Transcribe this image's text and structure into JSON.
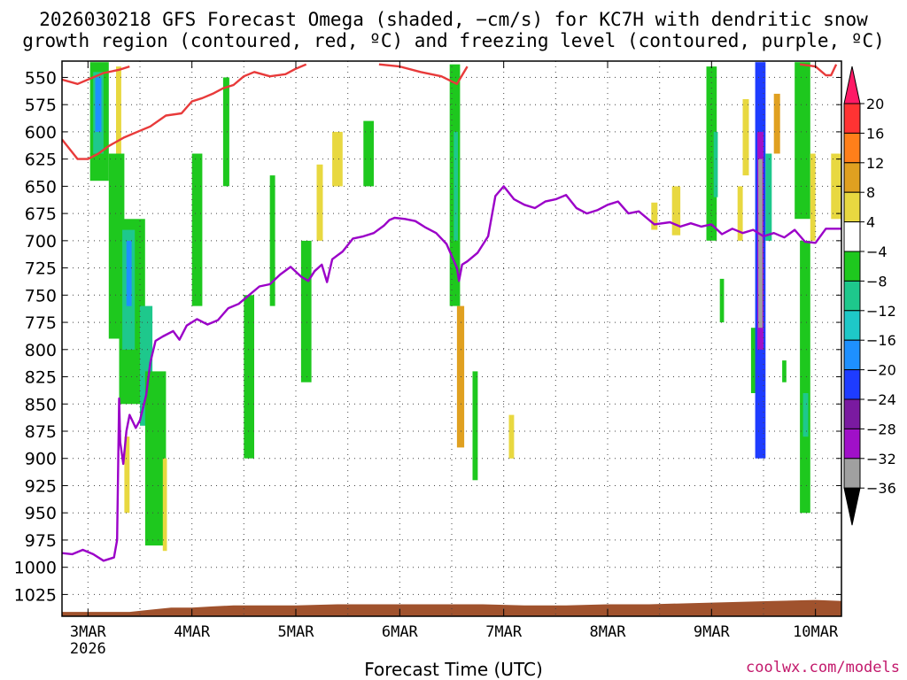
{
  "title_line1": "2026030218 GFS Forecast Omega (shaded, −cm/s) for KC7H with dendritic snow",
  "title_line2": "growth region (contoured, red, ºC) and freezing level (contoured, purple, ºC)",
  "x_axis_label": "Forecast Time (UTC)",
  "credit": "coolwx.com/models",
  "chart_data": {
    "type": "heatmap",
    "title": "2026030218 GFS Forecast Omega (shaded, −cm/s) for KC7H with dendritic snow growth region (contoured, red, ºC) and freezing level (contoured, purple, ºC)",
    "xlabel": "Forecast Time (UTC)",
    "ylabel": "",
    "x_range_days": [
      2.75,
      10.25
    ],
    "y_range_hpa": [
      535,
      1045
    ],
    "y_scale": "linear-inverted",
    "grid": true,
    "x_ticks": [
      {
        "day": 3,
        "label": "3MAR",
        "sublabel": "2026"
      },
      {
        "day": 4,
        "label": "4MAR"
      },
      {
        "day": 5,
        "label": "5MAR"
      },
      {
        "day": 6,
        "label": "6MAR"
      },
      {
        "day": 7,
        "label": "7MAR"
      },
      {
        "day": 8,
        "label": "8MAR"
      },
      {
        "day": 9,
        "label": "9MAR"
      },
      {
        "day": 10,
        "label": "10MAR"
      }
    ],
    "y_ticks": [
      550,
      575,
      600,
      625,
      650,
      675,
      700,
      725,
      750,
      775,
      800,
      825,
      850,
      875,
      900,
      925,
      950,
      975,
      1000,
      1025
    ],
    "colorbar": {
      "labels": [
        "20",
        "16",
        "12",
        "8",
        "4",
        "−4",
        "−8",
        "−12",
        "−16",
        "−20",
        "−24",
        "−28",
        "−32",
        "−36"
      ],
      "colors": [
        "#ff1a66",
        "#ff3333",
        "#ff7f1a",
        "#e0a020",
        "#e8d840",
        "#ffffff",
        "#1ec81e",
        "#1ec88c",
        "#1ec8c8",
        "#1e90ff",
        "#1e3cff",
        "#7a1aa0",
        "#a010c8",
        "#a0a0a0",
        "#000000"
      ]
    },
    "series": [
      {
        "name": "freezing level (contoured, purple, ºC)",
        "kind": "contour",
        "label": "0",
        "color": "#9b00c8",
        "points": [
          [
            2.75,
            987
          ],
          [
            2.85,
            988
          ],
          [
            2.95,
            984
          ],
          [
            3.05,
            988
          ],
          [
            3.15,
            994
          ],
          [
            3.25,
            991
          ],
          [
            3.28,
            975
          ],
          [
            3.3,
            845
          ],
          [
            3.31,
            885
          ],
          [
            3.34,
            905
          ],
          [
            3.37,
            875
          ],
          [
            3.4,
            860
          ],
          [
            3.46,
            872
          ],
          [
            3.5,
            865
          ],
          [
            3.56,
            842
          ],
          [
            3.6,
            812
          ],
          [
            3.65,
            792
          ],
          [
            3.72,
            788
          ],
          [
            3.82,
            783
          ],
          [
            3.88,
            791
          ],
          [
            3.95,
            778
          ],
          [
            4.05,
            772
          ],
          [
            4.15,
            777
          ],
          [
            4.25,
            773
          ],
          [
            4.35,
            762
          ],
          [
            4.45,
            758
          ],
          [
            4.55,
            750
          ],
          [
            4.65,
            742
          ],
          [
            4.75,
            740
          ],
          [
            4.85,
            731
          ],
          [
            4.95,
            724
          ],
          [
            5.05,
            733
          ],
          [
            5.12,
            737
          ],
          [
            5.18,
            728
          ],
          [
            5.25,
            722
          ],
          [
            5.3,
            738
          ],
          [
            5.35,
            717
          ],
          [
            5.45,
            710
          ],
          [
            5.55,
            698
          ],
          [
            5.65,
            696
          ],
          [
            5.75,
            693
          ],
          [
            5.85,
            686
          ],
          [
            5.9,
            681
          ],
          [
            5.95,
            679
          ],
          [
            6.05,
            680
          ],
          [
            6.15,
            682
          ],
          [
            6.25,
            688
          ],
          [
            6.35,
            693
          ],
          [
            6.45,
            703
          ],
          [
            6.55,
            725
          ],
          [
            6.57,
            737
          ],
          [
            6.6,
            722
          ],
          [
            6.65,
            719
          ],
          [
            6.75,
            711
          ],
          [
            6.85,
            696
          ],
          [
            6.92,
            659
          ],
          [
            7.0,
            650
          ],
          [
            7.1,
            662
          ],
          [
            7.2,
            667
          ],
          [
            7.3,
            670
          ],
          [
            7.4,
            664
          ],
          [
            7.5,
            662
          ],
          [
            7.6,
            658
          ],
          [
            7.7,
            670
          ],
          [
            7.8,
            675
          ],
          [
            7.9,
            672
          ],
          [
            8.0,
            667
          ],
          [
            8.1,
            664
          ],
          [
            8.2,
            675
          ],
          [
            8.3,
            673
          ],
          [
            8.45,
            685
          ],
          [
            8.6,
            683
          ],
          [
            8.7,
            687
          ],
          [
            8.8,
            684
          ],
          [
            8.9,
            687
          ],
          [
            9.0,
            685
          ],
          [
            9.1,
            694
          ],
          [
            9.2,
            689
          ],
          [
            9.3,
            693
          ],
          [
            9.4,
            690
          ],
          [
            9.5,
            696
          ],
          [
            9.6,
            693
          ],
          [
            9.7,
            697
          ],
          [
            9.8,
            690
          ],
          [
            9.9,
            701
          ],
          [
            10.0,
            702
          ],
          [
            10.1,
            689
          ],
          [
            10.25,
            689
          ]
        ]
      },
      {
        "name": "dendritic snow growth region (contoured, red, ºC)",
        "kind": "contour",
        "label": "-12",
        "color": "#e83a3a",
        "points": [
          [
            2.75,
            607
          ],
          [
            2.9,
            625
          ],
          [
            3.0,
            625
          ],
          [
            3.1,
            620
          ],
          [
            3.2,
            613
          ],
          [
            3.35,
            605
          ],
          [
            3.5,
            599
          ],
          [
            3.6,
            595
          ],
          [
            3.75,
            585
          ],
          [
            3.9,
            583
          ],
          [
            4.0,
            572
          ],
          [
            4.1,
            569
          ],
          [
            4.2,
            565
          ],
          [
            4.3,
            560
          ],
          [
            4.4,
            557
          ],
          [
            4.5,
            549
          ],
          [
            4.6,
            545
          ],
          [
            4.75,
            549
          ],
          [
            4.9,
            547
          ],
          [
            5.0,
            542
          ],
          [
            5.1,
            538
          ]
        ]
      },
      {
        "name": "dendritic snow growth region (contoured, red, ºC)",
        "kind": "contour",
        "label": "-12",
        "color": "#e83a3a",
        "points": [
          [
            2.75,
            552
          ],
          [
            2.9,
            556
          ],
          [
            3.05,
            550
          ],
          [
            3.15,
            546
          ],
          [
            3.3,
            543
          ],
          [
            3.4,
            540
          ]
        ]
      },
      {
        "name": "dendritic snow growth region (contoured, red, ºC)",
        "kind": "contour",
        "label": "-12",
        "color": "#e83a3a",
        "points": [
          [
            5.8,
            538
          ],
          [
            6.0,
            540
          ],
          [
            6.2,
            545
          ],
          [
            6.4,
            549
          ],
          [
            6.55,
            556
          ],
          [
            6.65,
            540
          ]
        ]
      },
      {
        "name": "dendritic snow growth region (contoured, red, ºC)",
        "kind": "contour",
        "label": "-12",
        "color": "#e83a3a",
        "points": [
          [
            9.85,
            538
          ],
          [
            10.0,
            540
          ],
          [
            10.1,
            548
          ],
          [
            10.15,
            548
          ],
          [
            10.2,
            538
          ]
        ]
      }
    ],
    "omega_regions": [
      {
        "t0": 3.02,
        "t1": 3.2,
        "p0": 536,
        "p1": 645,
        "v": -6
      },
      {
        "t0": 3.05,
        "t1": 3.15,
        "p0": 545,
        "p1": 620,
        "v": -12
      },
      {
        "t0": 3.07,
        "t1": 3.13,
        "p0": 550,
        "p1": 600,
        "v": -20
      },
      {
        "t0": 3.2,
        "t1": 3.35,
        "p0": 620,
        "p1": 790,
        "v": -6
      },
      {
        "t0": 3.3,
        "t1": 3.55,
        "p0": 680,
        "p1": 850,
        "v": -6
      },
      {
        "t0": 3.33,
        "t1": 3.45,
        "p0": 690,
        "p1": 800,
        "v": -12
      },
      {
        "t0": 3.37,
        "t1": 3.42,
        "p0": 700,
        "p1": 760,
        "v": -18
      },
      {
        "t0": 3.5,
        "t1": 3.62,
        "p0": 760,
        "p1": 870,
        "v": -12
      },
      {
        "t0": 3.55,
        "t1": 3.75,
        "p0": 820,
        "p1": 980,
        "v": -6
      },
      {
        "t0": 3.27,
        "t1": 3.32,
        "p0": 540,
        "p1": 620,
        "v": 6
      },
      {
        "t0": 3.35,
        "t1": 3.4,
        "p0": 880,
        "p1": 950,
        "v": 6
      },
      {
        "t0": 3.72,
        "t1": 3.76,
        "p0": 900,
        "p1": 985,
        "v": 6
      },
      {
        "t0": 4.0,
        "t1": 4.1,
        "p0": 620,
        "p1": 760,
        "v": -6
      },
      {
        "t0": 4.3,
        "t1": 4.36,
        "p0": 550,
        "p1": 650,
        "v": -6
      },
      {
        "t0": 4.5,
        "t1": 4.6,
        "p0": 750,
        "p1": 900,
        "v": -6
      },
      {
        "t0": 4.75,
        "t1": 4.8,
        "p0": 640,
        "p1": 760,
        "v": -6
      },
      {
        "t0": 5.05,
        "t1": 5.15,
        "p0": 700,
        "p1": 830,
        "v": -6
      },
      {
        "t0": 5.2,
        "t1": 5.26,
        "p0": 630,
        "p1": 700,
        "v": 6
      },
      {
        "t0": 5.35,
        "t1": 5.45,
        "p0": 600,
        "p1": 650,
        "v": 6
      },
      {
        "t0": 5.65,
        "t1": 5.75,
        "p0": 590,
        "p1": 650,
        "v": -6
      },
      {
        "t0": 6.48,
        "t1": 6.58,
        "p0": 538,
        "p1": 760,
        "v": -6
      },
      {
        "t0": 6.52,
        "t1": 6.56,
        "p0": 600,
        "p1": 700,
        "v": -12
      },
      {
        "t0": 6.55,
        "t1": 6.62,
        "p0": 760,
        "p1": 890,
        "v": 10
      },
      {
        "t0": 6.7,
        "t1": 6.75,
        "p0": 820,
        "p1": 920,
        "v": -6
      },
      {
        "t0": 7.05,
        "t1": 7.1,
        "p0": 860,
        "p1": 900,
        "v": 6
      },
      {
        "t0": 8.42,
        "t1": 8.48,
        "p0": 665,
        "p1": 690,
        "v": 6
      },
      {
        "t0": 8.62,
        "t1": 8.7,
        "p0": 650,
        "p1": 695,
        "v": 6
      },
      {
        "t0": 8.95,
        "t1": 9.05,
        "p0": 540,
        "p1": 700,
        "v": -6
      },
      {
        "t0": 9.02,
        "t1": 9.06,
        "p0": 600,
        "p1": 660,
        "v": -12
      },
      {
        "t0": 9.08,
        "t1": 9.12,
        "p0": 735,
        "p1": 775,
        "v": -6
      },
      {
        "t0": 9.25,
        "t1": 9.3,
        "p0": 650,
        "p1": 700,
        "v": 6
      },
      {
        "t0": 9.3,
        "t1": 9.36,
        "p0": 570,
        "p1": 640,
        "v": 6
      },
      {
        "t0": 9.38,
        "t1": 9.44,
        "p0": 780,
        "p1": 840,
        "v": -6
      },
      {
        "t0": 9.42,
        "t1": 9.52,
        "p0": 536,
        "p1": 900,
        "v": -24
      },
      {
        "t0": 9.44,
        "t1": 9.5,
        "p0": 600,
        "p1": 800,
        "v": -30
      },
      {
        "t0": 9.45,
        "t1": 9.49,
        "p0": 625,
        "p1": 780,
        "v": -36
      },
      {
        "t0": 9.52,
        "t1": 9.58,
        "p0": 620,
        "p1": 700,
        "v": -12
      },
      {
        "t0": 9.6,
        "t1": 9.66,
        "p0": 565,
        "p1": 620,
        "v": 10
      },
      {
        "t0": 9.68,
        "t1": 9.72,
        "p0": 810,
        "p1": 830,
        "v": -6
      },
      {
        "t0": 9.8,
        "t1": 9.95,
        "p0": 536,
        "p1": 680,
        "v": -6
      },
      {
        "t0": 9.85,
        "t1": 9.95,
        "p0": 700,
        "p1": 950,
        "v": -6
      },
      {
        "t0": 9.88,
        "t1": 9.93,
        "p0": 840,
        "p1": 880,
        "v": -12
      },
      {
        "t0": 9.95,
        "t1": 10.0,
        "p0": 620,
        "p1": 700,
        "v": 6
      },
      {
        "t0": 10.15,
        "t1": 10.25,
        "p0": 620,
        "p1": 680,
        "v": 6
      }
    ],
    "terrain": [
      [
        2.75,
        1041
      ],
      [
        3.4,
        1041
      ],
      [
        3.6,
        1039
      ],
      [
        3.8,
        1037
      ],
      [
        4.0,
        1037
      ],
      [
        4.2,
        1036
      ],
      [
        4.4,
        1035
      ],
      [
        5.0,
        1035
      ],
      [
        5.4,
        1034
      ],
      [
        6.0,
        1034
      ],
      [
        6.4,
        1034
      ],
      [
        6.8,
        1034
      ],
      [
        7.2,
        1035
      ],
      [
        7.6,
        1035
      ],
      [
        8.0,
        1034
      ],
      [
        8.4,
        1034
      ],
      [
        8.8,
        1033
      ],
      [
        9.2,
        1032
      ],
      [
        9.6,
        1031
      ],
      [
        10.0,
        1030
      ],
      [
        10.25,
        1031
      ]
    ]
  }
}
